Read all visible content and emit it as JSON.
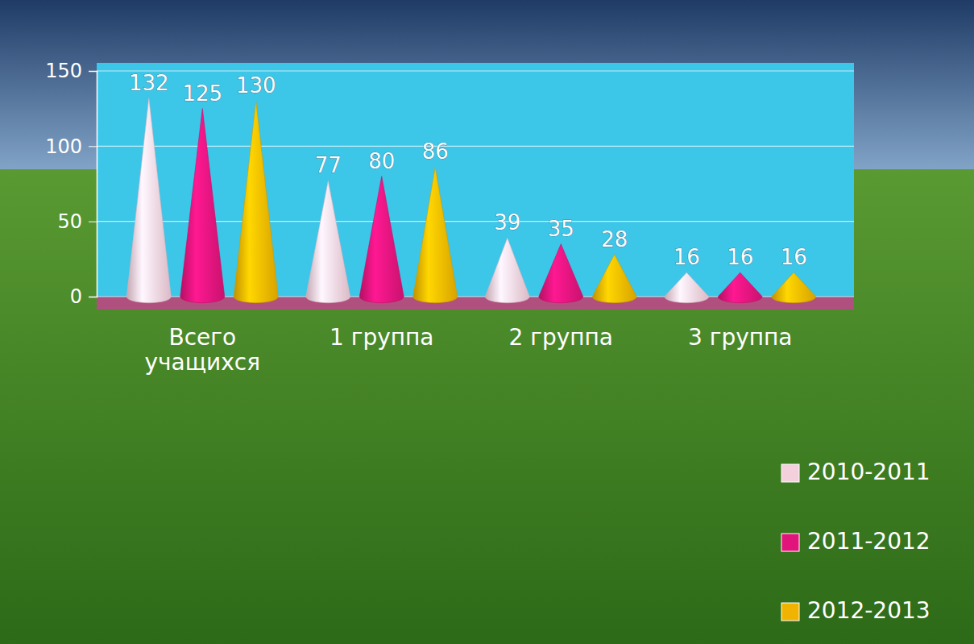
{
  "chart_data": {
    "type": "bar",
    "categories": [
      "Всего учащихся",
      "1 группа",
      "2 группа",
      "3 группа"
    ],
    "series": [
      {
        "name": "2010-2011",
        "color": "#f4cfdc",
        "values": [
          132,
          77,
          39,
          16
        ]
      },
      {
        "name": "2011-2012",
        "color": "#e0147a",
        "values": [
          125,
          80,
          35,
          16
        ]
      },
      {
        "name": "2012-2013",
        "color": "#f0b400",
        "values": [
          130,
          86,
          28,
          16
        ]
      }
    ],
    "ylim": [
      0,
      150
    ],
    "yticks": [
      0,
      50,
      100,
      150
    ],
    "grid": true,
    "data_labels": true,
    "legend": "bottom-right"
  }
}
